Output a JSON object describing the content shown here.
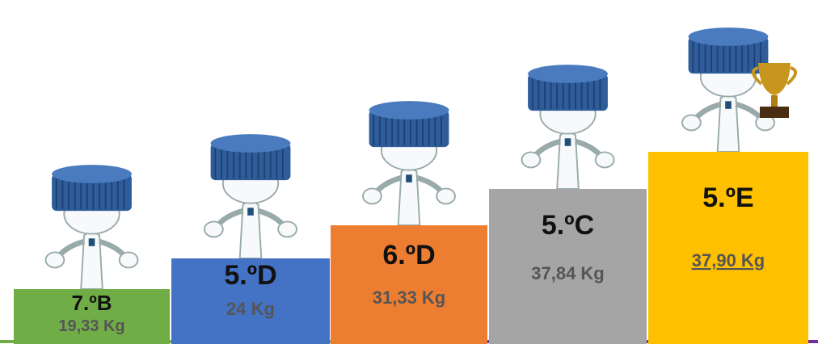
{
  "steps": [
    {
      "label": "7.ºB",
      "weight": "19,33 Kg"
    },
    {
      "label": "5.ºD",
      "weight": "24 Kg"
    },
    {
      "label": "6.ºD",
      "weight": "31,33 Kg"
    },
    {
      "label": "5.ºC",
      "weight": "37,84 Kg"
    },
    {
      "label": "5.ºE",
      "weight": "37,90 Kg"
    }
  ]
}
